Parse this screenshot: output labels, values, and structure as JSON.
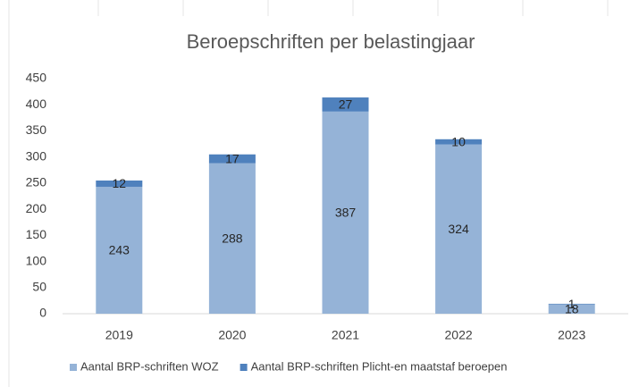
{
  "chart_data": {
    "type": "bar",
    "stacked": true,
    "title": "Beroepschriften per belastingjaar",
    "categories": [
      "2019",
      "2020",
      "2021",
      "2022",
      "2023"
    ],
    "series": [
      {
        "name": "Aantal BRP-schriften WOZ",
        "color": "#95b3d7",
        "values": [
          243,
          288,
          387,
          324,
          18
        ]
      },
      {
        "name": "Aantal BRP-schriften Plicht-en maatstaf beroepen",
        "color": "#4f81bd",
        "values": [
          12,
          17,
          27,
          10,
          1
        ]
      }
    ],
    "ylim": [
      0,
      450
    ],
    "yticks": [
      0,
      50,
      100,
      150,
      200,
      250,
      300,
      350,
      400,
      450
    ],
    "grid": false,
    "legend": "bottom"
  }
}
